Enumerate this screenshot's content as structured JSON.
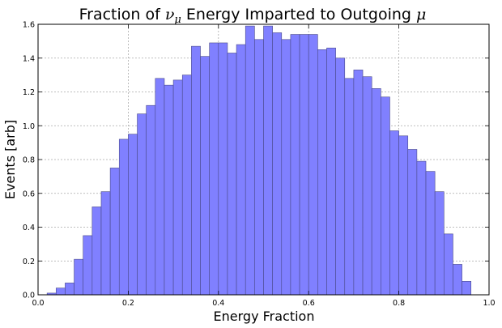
{
  "chart_data": {
    "type": "bar",
    "title": {
      "prefix": "Fraction of ",
      "symbol1": "ν",
      "symbol1_sub": "μ",
      "middle": " Energy Imparted to Outgoing ",
      "symbol2": "μ"
    },
    "xlabel": "Energy Fraction",
    "ylabel": "Events [arb]",
    "xlim": [
      0.0,
      1.0
    ],
    "ylim": [
      0.0,
      1.6
    ],
    "xticks": [
      0.0,
      0.2,
      0.4,
      0.6,
      0.8,
      1.0
    ],
    "xtick_labels": [
      "0.0",
      "0.2",
      "0.4",
      "0.6",
      "0.8",
      "1.0"
    ],
    "yticks": [
      0.0,
      0.2,
      0.4,
      0.6,
      0.8,
      1.0,
      1.2,
      1.4,
      1.6
    ],
    "ytick_labels": [
      "0.0",
      "0.2",
      "0.4",
      "0.6",
      "0.8",
      "1.0",
      "1.2",
      "1.4",
      "1.6"
    ],
    "grid": true,
    "bar_color": "#8080ff",
    "bin_start": 0.02,
    "bin_width": 0.02,
    "values": [
      0.01,
      0.04,
      0.07,
      0.21,
      0.35,
      0.52,
      0.61,
      0.75,
      0.92,
      0.95,
      1.07,
      1.12,
      1.28,
      1.24,
      1.27,
      1.3,
      1.47,
      1.41,
      1.49,
      1.49,
      1.43,
      1.48,
      1.59,
      1.51,
      1.59,
      1.55,
      1.51,
      1.54,
      1.54,
      1.54,
      1.45,
      1.46,
      1.4,
      1.28,
      1.33,
      1.29,
      1.22,
      1.17,
      0.97,
      0.94,
      0.86,
      0.79,
      0.73,
      0.61,
      0.36,
      0.18,
      0.08
    ]
  }
}
